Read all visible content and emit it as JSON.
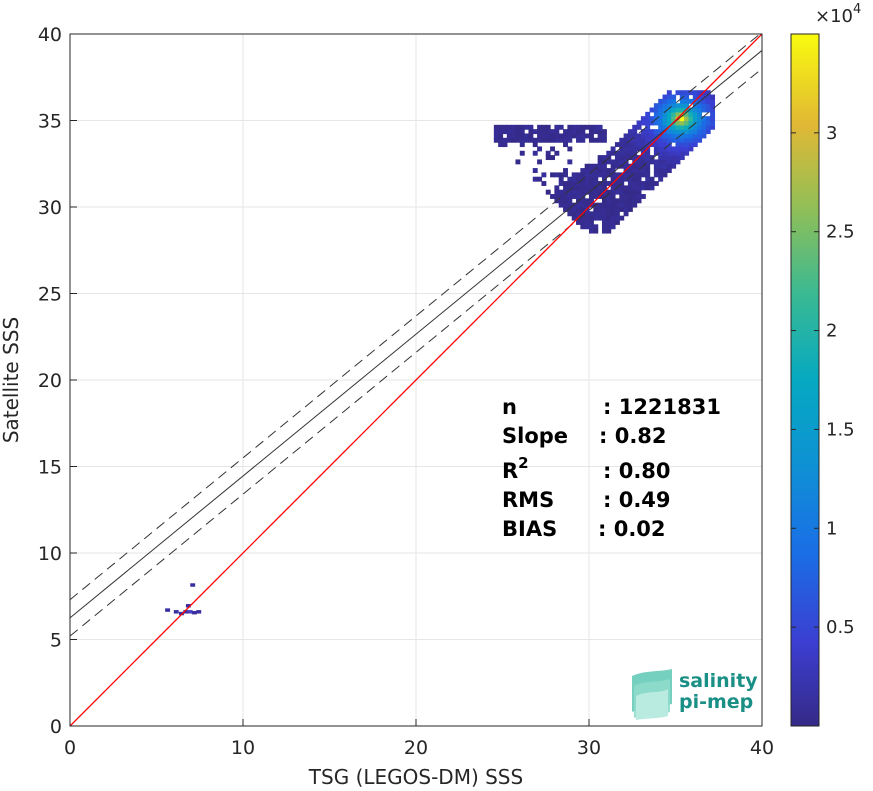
{
  "chart_data": {
    "type": "heatmap",
    "xlabel": "TSG (LEGOS-DM) SSS",
    "ylabel": "Satellite SSS",
    "xlim": [
      0,
      40
    ],
    "ylim": [
      0,
      40
    ],
    "x_ticks": [
      "0",
      "10",
      "20",
      "30",
      "40"
    ],
    "y_ticks": [
      "0",
      "5",
      "10",
      "15",
      "20",
      "25",
      "30",
      "35",
      "40"
    ],
    "grid": true,
    "colorbar": {
      "range": [
        0,
        3.5
      ],
      "multiplier": "×10",
      "exponent": "4",
      "ticks": [
        "0.5",
        "1",
        "1.5",
        "2",
        "2.5",
        "3"
      ],
      "colormap": "parula"
    },
    "lines": {
      "identity": {
        "slope": 1,
        "intercept": 0,
        "color": "#ff0000"
      },
      "fit": {
        "slope": 0.82,
        "intercept": 6.25,
        "color": "#333333"
      },
      "fit_upper": {
        "slope": 0.82,
        "intercept": 7.3,
        "style": "dashed"
      },
      "fit_lower": {
        "slope": 0.82,
        "intercept": 5.2,
        "style": "dashed"
      }
    },
    "stats": [
      {
        "label": "n",
        "colon": ": 1221831"
      },
      {
        "label": "Slope",
        "colon": ": 0.82"
      },
      {
        "label": "R",
        "sup": "2",
        "colon": ": 0.80"
      },
      {
        "label": "RMS",
        "colon": ": 0.49"
      },
      {
        "label": "BIAS",
        "colon": ": 0.02"
      }
    ],
    "density": {
      "main_cluster_center": [
        35.2,
        35.0
      ],
      "main_cluster_x_range": [
        24.5,
        37.0
      ],
      "main_cluster_y_range": [
        28.5,
        36.5
      ],
      "small_cluster_center": [
        6.8,
        6.5
      ]
    }
  },
  "logo": {
    "line1": "salinity",
    "line2": "pi-mep",
    "colors": {
      "text": "#1a8f86",
      "mark": "#5ec8b4"
    }
  }
}
